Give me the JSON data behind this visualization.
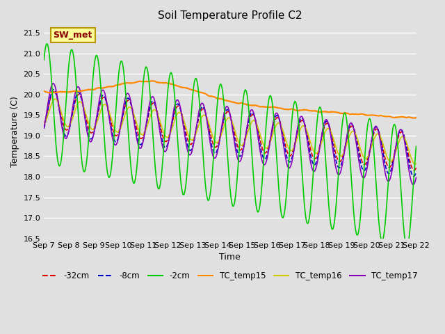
{
  "title": "Soil Temperature Profile C2",
  "xlabel": "Time",
  "ylabel": "Temperature (C)",
  "ylim": [
    16.5,
    21.7
  ],
  "bg_color": "#e0e0e0",
  "annotation_text": "SW_met",
  "annotation_bg": "#ffff99",
  "annotation_border": "#b8960c",
  "annotation_text_color": "#880000",
  "x_tick_labels": [
    "Sep 7",
    "Sep 8",
    "Sep 9",
    "Sep 10",
    "Sep 11",
    "Sep 12",
    "Sep 13",
    "Sep 14",
    "Sep 15",
    "Sep 16",
    "Sep 17",
    "Sep 18",
    "Sep 19",
    "Sep 20",
    "Sep 21",
    "Sep 22"
  ],
  "legend_labels": [
    "-32cm",
    "-8cm",
    "-2cm",
    "TC_temp15",
    "TC_temp16",
    "TC_temp17"
  ],
  "legend_colors": [
    "#dd0000",
    "#0000cc",
    "#00cc00",
    "#ff8800",
    "#cccc00",
    "#8800bb"
  ],
  "line_styles": [
    "--",
    "--",
    "-",
    "-",
    "-",
    "-"
  ],
  "n_days": 15,
  "pts_per_day": 96
}
